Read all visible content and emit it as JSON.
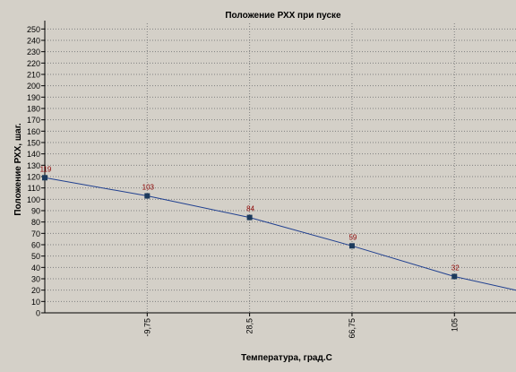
{
  "chart_data": {
    "type": "line",
    "title": "Положение РХХ при пуске",
    "xlabel": "Температура, град.С",
    "ylabel": "Положение РХХ, шаг.",
    "x_ticks": [
      -9.75,
      28.5,
      66.75,
      105
    ],
    "x_tick_labels": [
      "-9,75",
      "28,5",
      "66,75",
      "105"
    ],
    "xlim": [
      -48,
      128
    ],
    "ylim": [
      0,
      255
    ],
    "y_ticks": [
      0,
      10,
      20,
      30,
      40,
      50,
      60,
      70,
      80,
      90,
      100,
      110,
      120,
      130,
      140,
      150,
      160,
      170,
      180,
      190,
      200,
      210,
      220,
      230,
      240,
      250
    ],
    "grid": true,
    "series": [
      {
        "points": [
          {
            "x": -48,
            "y": 119
          },
          {
            "x": -9.75,
            "y": 103
          },
          {
            "x": 28.5,
            "y": 84
          },
          {
            "x": 66.75,
            "y": 59
          },
          {
            "x": 105,
            "y": 32
          },
          {
            "x": 128,
            "y": 20
          }
        ],
        "markers": [
          {
            "x": -48,
            "y": 119,
            "label": "119"
          },
          {
            "x": -9.75,
            "y": 103,
            "label": "103"
          },
          {
            "x": 28.5,
            "y": 84,
            "label": "84"
          },
          {
            "x": 66.75,
            "y": 59,
            "label": "59"
          },
          {
            "x": 105,
            "y": 32,
            "label": "32"
          }
        ]
      }
    ],
    "colors": {
      "background": "#d4d0c8",
      "grid": "#808080",
      "line": "#1f3f8f",
      "marker": "#1c3a5c",
      "value_label": "#8b0000",
      "text": "#000000"
    }
  }
}
